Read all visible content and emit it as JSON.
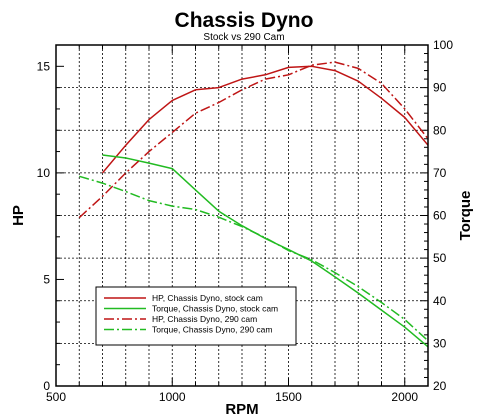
{
  "chart_data": {
    "type": "line",
    "title": "Chassis Dyno",
    "subtitle": "Stock vs 290 Cam",
    "xlabel": "RPM",
    "ylabel_left": "HP",
    "ylabel_right": "Torque",
    "xlim": [
      500,
      2100
    ],
    "ylim_left": [
      0,
      16
    ],
    "ylim_right": [
      20,
      100
    ],
    "x_ticks": [
      500,
      1000,
      1500,
      2000
    ],
    "y_left_ticks": [
      0,
      5,
      10,
      15
    ],
    "y_right_ticks": [
      20,
      30,
      40,
      50,
      60,
      70,
      80,
      90,
      100
    ],
    "grid": true,
    "legend_position": "bottom-left",
    "series": [
      {
        "name": "HP, Chassis Dyno, stock cam",
        "axis": "left",
        "color": "#bf1515",
        "dash": "solid",
        "x": [
          700,
          800,
          900,
          1000,
          1100,
          1200,
          1300,
          1400,
          1500,
          1600,
          1700,
          1800,
          1900,
          2000,
          2100
        ],
        "y": [
          10.0,
          11.3,
          12.5,
          13.4,
          13.9,
          14.0,
          14.4,
          14.6,
          14.95,
          15.0,
          14.8,
          14.3,
          13.5,
          12.6,
          11.3
        ]
      },
      {
        "name": "Torque, Chassis Dyno, stock cam",
        "axis": "right",
        "color": "#22bb22",
        "dash": "solid",
        "x": [
          700,
          800,
          900,
          1000,
          1100,
          1200,
          1300,
          1400,
          1500,
          1600,
          1700,
          1800,
          1900,
          2000,
          2100
        ],
        "y": [
          74.2,
          73.5,
          72.3,
          71.0,
          66.0,
          61.0,
          57.6,
          54.6,
          52.0,
          49.3,
          45.6,
          41.8,
          37.8,
          33.8,
          29.2
        ]
      },
      {
        "name": "HP, Chassis Dyno, 290 cam",
        "axis": "left",
        "color": "#bf1515",
        "dash": "dashdot",
        "x": [
          600,
          700,
          800,
          900,
          1000,
          1100,
          1200,
          1300,
          1400,
          1500,
          1600,
          1700,
          1800,
          1900,
          2000,
          2100
        ],
        "y": [
          7.9,
          8.9,
          10.0,
          11.0,
          11.9,
          12.8,
          13.3,
          13.9,
          14.4,
          14.6,
          15.05,
          15.2,
          14.9,
          14.2,
          13.0,
          11.6
        ]
      },
      {
        "name": "Torque, Chassis Dyno, 290 cam",
        "axis": "right",
        "color": "#22bb22",
        "dash": "dashdot",
        "x": [
          600,
          700,
          800,
          900,
          1000,
          1100,
          1200,
          1300,
          1400,
          1500,
          1600,
          1700,
          1800,
          1900,
          2000,
          2100
        ],
        "y": [
          69.2,
          67.6,
          65.6,
          63.5,
          62.2,
          61.4,
          59.6,
          57.4,
          54.8,
          51.8,
          49.6,
          46.6,
          43.3,
          39.6,
          35.6,
          30.6
        ]
      }
    ]
  }
}
